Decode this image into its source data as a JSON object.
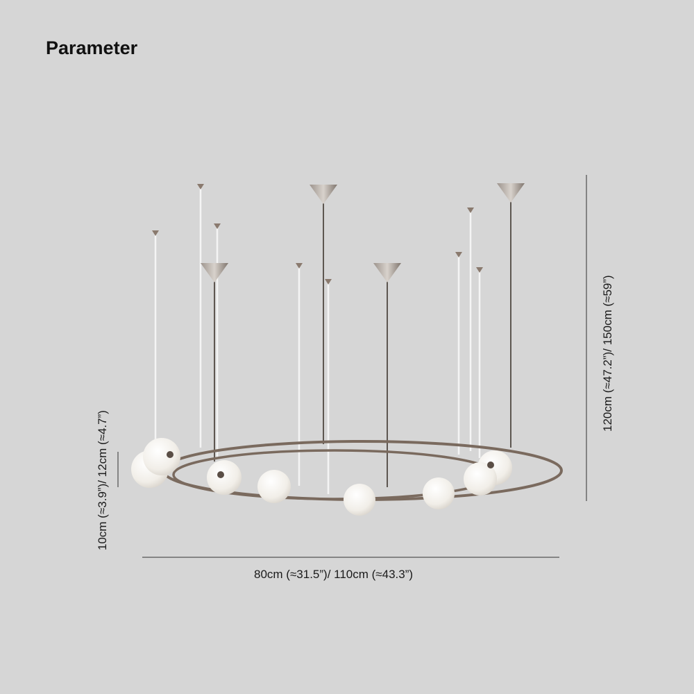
{
  "title": "Parameter",
  "dimensions": {
    "width": "80cm (≈31.5”)/ 110cm (≈43.3”)",
    "height": "120cm (≈47.2”)/ 150cm (≈59”)",
    "ring_height": "10cm (≈3.9”)/ 12cm (≈4.7”)"
  },
  "colors": {
    "background": "#d6d6d6",
    "metal": "#7a6a5e",
    "globe": "#f3f1ec"
  }
}
